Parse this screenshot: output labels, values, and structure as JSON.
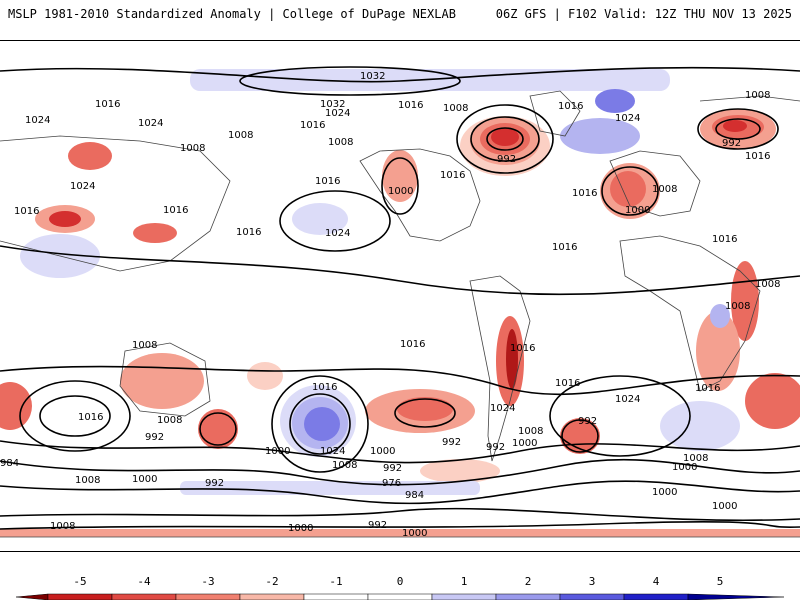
{
  "header": {
    "title_left": "MSLP 1981-2010 Standardized Anomaly | College of DuPage NEXLAB",
    "title_right": "06Z GFS | F102 Valid: 12Z THU NOV 13 2025"
  },
  "colors": {
    "neg_strong": "#d42f2f",
    "neg_med": "#ea6b5f",
    "neg_light": "#f4a090",
    "neg_faint": "#fbd0c4",
    "pos_faint": "#dcdcf8",
    "pos_light": "#b4b4f0",
    "pos_med": "#7b7be6",
    "pos_strong": "#3232d2",
    "isobar": "#000000",
    "coast": "#444444"
  },
  "colorbar": {
    "ticks": [
      "-5",
      "-4",
      "-3",
      "-2",
      "-1",
      "0",
      "1",
      "2",
      "3",
      "4",
      "5"
    ],
    "bins": [
      "#7a0000",
      "#c81e1e",
      "#e04a44",
      "#f08070",
      "#f8b8a8",
      "#ffffff",
      "#ffffff",
      "#c8c8f4",
      "#9a9aec",
      "#5a5ade",
      "#2020c8",
      "#000090"
    ]
  },
  "isobar_labels": [
    {
      "text": "1032",
      "name": "isobar-label-1032-north-pacific"
    },
    {
      "text": "1032",
      "name": "isobar-label-1032-north-pacific-west"
    },
    {
      "text": "1016",
      "name": "isobar-label-1016-nw-1"
    },
    {
      "text": "1024",
      "name": "isobar-label-1024-siberia"
    },
    {
      "text": "1024",
      "name": "isobar-label-1024-asia-1"
    },
    {
      "text": "1024",
      "name": "isobar-label-1024-pacific"
    },
    {
      "text": "1016",
      "name": "isobar-label-1016-alaska"
    },
    {
      "text": "1008",
      "name": "isobar-label-1008-canada"
    },
    {
      "text": "1016",
      "name": "isobar-label-1016-greenland"
    },
    {
      "text": "1024",
      "name": "isobar-label-1024-atlantic"
    },
    {
      "text": "1008",
      "name": "isobar-label-1008-arctic-east"
    },
    {
      "text": "1008",
      "name": "isobar-label-1008-asia-2"
    },
    {
      "text": "1008",
      "name": "isobar-label-1008-asia-3"
    },
    {
      "text": "1016",
      "name": "isobar-label-1016-asia-4"
    },
    {
      "text": "1008",
      "name": "isobar-label-1008-pacific-nw"
    },
    {
      "text": "992",
      "name": "isobar-label-992-hudson"
    },
    {
      "text": "992",
      "name": "isobar-label-992-siberia"
    },
    {
      "text": "1016",
      "name": "isobar-label-1016-pacific-mid"
    },
    {
      "text": "1000",
      "name": "isobar-label-1000-rockies"
    },
    {
      "text": "1016",
      "name": "isobar-label-1016-us"
    },
    {
      "text": "1016",
      "name": "isobar-label-1016-atlantic-w"
    },
    {
      "text": "1008",
      "name": "isobar-label-1008-europe"
    },
    {
      "text": "1000",
      "name": "isobar-label-1000-europe"
    },
    {
      "text": "1016",
      "name": "isobar-label-1016-europe-east"
    },
    {
      "text": "1024",
      "name": "isobar-label-1024-asia-west"
    },
    {
      "text": "1016",
      "name": "isobar-label-1016-tibet"
    },
    {
      "text": "1016",
      "name": "isobar-label-1016-china"
    },
    {
      "text": "1016",
      "name": "isobar-label-1016-pacific-w"
    },
    {
      "text": "1024",
      "name": "isobar-label-1024-pacific-high"
    },
    {
      "text": "1016",
      "name": "isobar-label-1016-atlantic-mid"
    },
    {
      "text": "1016",
      "name": "isobar-label-1016-asia-east"
    },
    {
      "text": "1008",
      "name": "isobar-label-1008-africa-east"
    },
    {
      "text": "1008",
      "name": "isobar-label-1008-africa-south"
    },
    {
      "text": "1008",
      "name": "isobar-label-1008-australia"
    },
    {
      "text": "1016",
      "name": "isobar-label-1016-south-america"
    },
    {
      "text": "1016",
      "name": "isobar-label-1016-south-pacific"
    },
    {
      "text": "1016",
      "name": "isobar-label-1016-south-atlantic"
    },
    {
      "text": "1024",
      "name": "isobar-label-1024-south-atlantic"
    },
    {
      "text": "1016",
      "name": "isobar-label-1016-indian"
    },
    {
      "text": "1016",
      "name": "isobar-label-1016-indian-west"
    },
    {
      "text": "1008",
      "name": "isobar-label-1008-tasman"
    },
    {
      "text": "1024",
      "name": "isobar-label-1024-chile"
    },
    {
      "text": "1016",
      "name": "isobar-label-1016-andes"
    },
    {
      "text": "1024",
      "name": "isobar-label-1024-south-pacific-low"
    },
    {
      "text": "1008",
      "name": "isobar-label-1008-south-pacific"
    },
    {
      "text": "1000",
      "name": "isobar-label-1000-south-pacific"
    },
    {
      "text": "992",
      "name": "isobar-label-992-south-pacific"
    },
    {
      "text": "992",
      "name": "isobar-label-992-argentina"
    },
    {
      "text": "992",
      "name": "isobar-label-992-south-atlantic"
    },
    {
      "text": "1008",
      "name": "isobar-label-1008-drake"
    },
    {
      "text": "1000",
      "name": "isobar-label-1000-drake"
    },
    {
      "text": "1000",
      "name": "isobar-label-1000-indian-south"
    },
    {
      "text": "1008",
      "name": "isobar-label-1008-indian-south"
    },
    {
      "text": "992",
      "name": "isobar-label-992-southern-1"
    },
    {
      "text": "1000",
      "name": "isobar-label-1000-southern-1"
    },
    {
      "text": "984",
      "name": "isobar-label-984-west"
    },
    {
      "text": "1008",
      "name": "isobar-label-1008-southern-west"
    },
    {
      "text": "1000",
      "name": "isobar-label-1000-southern-2"
    },
    {
      "text": "992",
      "name": "isobar-label-992-southern-2"
    },
    {
      "text": "976",
      "name": "isobar-label-976-southern"
    },
    {
      "text": "984",
      "name": "isobar-label-984-southern"
    },
    {
      "text": "992",
      "name": "isobar-label-992-southern-3"
    },
    {
      "text": "1000",
      "name": "isobar-label-1000-southern-3"
    },
    {
      "text": "1000",
      "name": "isobar-label-1000-southern-4"
    },
    {
      "text": "1008",
      "name": "isobar-label-1008-antarctic"
    },
    {
      "text": "1000",
      "name": "isobar-label-1000-antarctic"
    },
    {
      "text": "992",
      "name": "isobar-label-992-antarctic"
    },
    {
      "text": "1000",
      "name": "isobar-label-1000-antarctic-east"
    }
  ]
}
